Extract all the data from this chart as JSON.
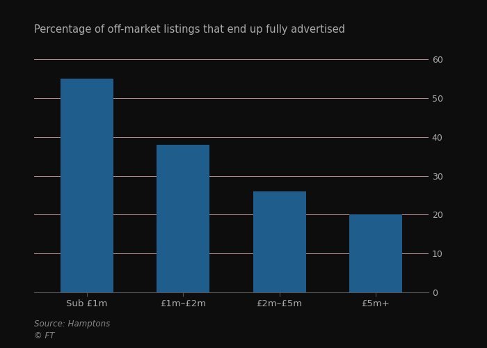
{
  "categories": [
    "Sub £1m",
    "£1m–£2m",
    "£2m–£5m",
    "£5m+"
  ],
  "values": [
    55,
    38,
    26,
    20
  ],
  "bar_color": "#1f5d8c",
  "title": "Percentage of off-market listings that end up fully advertised",
  "title_fontsize": 10.5,
  "ylim": [
    0,
    60
  ],
  "yticks": [
    0,
    10,
    20,
    30,
    40,
    50,
    60
  ],
  "source_line1": "Source: Hamptons",
  "source_line2": "© FT",
  "background_color": "#0d0d0d",
  "plot_bg_color": "#0d0d0d",
  "grid_color": "#c09090",
  "spine_color": "#555555",
  "tick_label_color": "#aaaaaa",
  "title_color": "#aaaaaa",
  "source_color": "#888888",
  "bar_width": 0.55
}
